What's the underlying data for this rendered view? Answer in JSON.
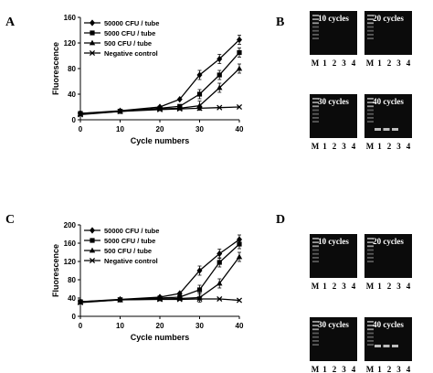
{
  "panels": {
    "A": "A",
    "B": "B",
    "C": "C",
    "D": "D"
  },
  "chart_data": [
    {
      "type": "line",
      "panel": "A",
      "xlabel": "Cycle numbers",
      "ylabel": "Fluorescence",
      "xlim": [
        0,
        40
      ],
      "ylim": [
        0,
        160
      ],
      "xticks": [
        "0",
        "10",
        "20",
        "30",
        "40"
      ],
      "yticks": [
        "0",
        "40",
        "80",
        "120",
        "160"
      ],
      "x": [
        0,
        10,
        20,
        25,
        30,
        35,
        40
      ],
      "legend_position": "top-left",
      "series": [
        {
          "name": "50000 CFU / tube",
          "marker": "diamond",
          "values": [
            10,
            14,
            20,
            32,
            70,
            95,
            125
          ]
        },
        {
          "name": "5000 CFU / tube",
          "marker": "square",
          "values": [
            10,
            13,
            18,
            21,
            40,
            70,
            105
          ]
        },
        {
          "name": "500 CFU / tube",
          "marker": "triangle",
          "values": [
            9,
            13,
            17,
            18,
            22,
            50,
            80
          ]
        },
        {
          "name": "Negative control",
          "marker": "x",
          "values": [
            8,
            13,
            16,
            17,
            18,
            19,
            20
          ]
        }
      ]
    },
    {
      "type": "line",
      "panel": "C",
      "xlabel": "Cycle numbers",
      "ylabel": "Fluorescence",
      "xlim": [
        0,
        40
      ],
      "ylim": [
        0,
        200
      ],
      "xticks": [
        "0",
        "10",
        "20",
        "30",
        "40"
      ],
      "yticks": [
        "0",
        "40",
        "80",
        "120",
        "160",
        "200"
      ],
      "x": [
        0,
        10,
        20,
        25,
        30,
        35,
        40
      ],
      "legend_position": "top-left",
      "series": [
        {
          "name": "50000 CFU / tube",
          "marker": "diamond",
          "values": [
            32,
            37,
            42,
            50,
            100,
            137,
            168
          ]
        },
        {
          "name": "5000 CFU / tube",
          "marker": "square",
          "values": [
            32,
            36,
            40,
            42,
            58,
            118,
            158
          ]
        },
        {
          "name": "500 CFU / tube",
          "marker": "triangle",
          "values": [
            31,
            36,
            38,
            39,
            41,
            72,
            130
          ]
        },
        {
          "name": "Negative control",
          "marker": "x",
          "values": [
            30,
            36,
            37,
            37,
            38,
            38,
            35
          ]
        }
      ]
    }
  ],
  "gels": {
    "B": [
      {
        "title": "10 cycles",
        "lanes": [
          "M",
          "1",
          "2",
          "3",
          "4"
        ]
      },
      {
        "title": "20 cycles",
        "lanes": [
          "M",
          "1",
          "2",
          "3",
          "4"
        ]
      },
      {
        "title": "30 cycles",
        "lanes": [
          "M",
          "1",
          "2",
          "3",
          "4"
        ]
      },
      {
        "title": "40 cycles",
        "lanes": [
          "M",
          "1",
          "2",
          "3",
          "4"
        ]
      }
    ],
    "D": [
      {
        "title": "10 cycles",
        "lanes": [
          "M",
          "1",
          "2",
          "3",
          "4"
        ]
      },
      {
        "title": "20 cycles",
        "lanes": [
          "M",
          "1",
          "2",
          "3",
          "4"
        ]
      },
      {
        "title": "30 cycles",
        "lanes": [
          "M",
          "1",
          "2",
          "3",
          "4"
        ]
      },
      {
        "title": "40 cycles",
        "lanes": [
          "M",
          "1",
          "2",
          "3",
          "4"
        ]
      }
    ]
  }
}
